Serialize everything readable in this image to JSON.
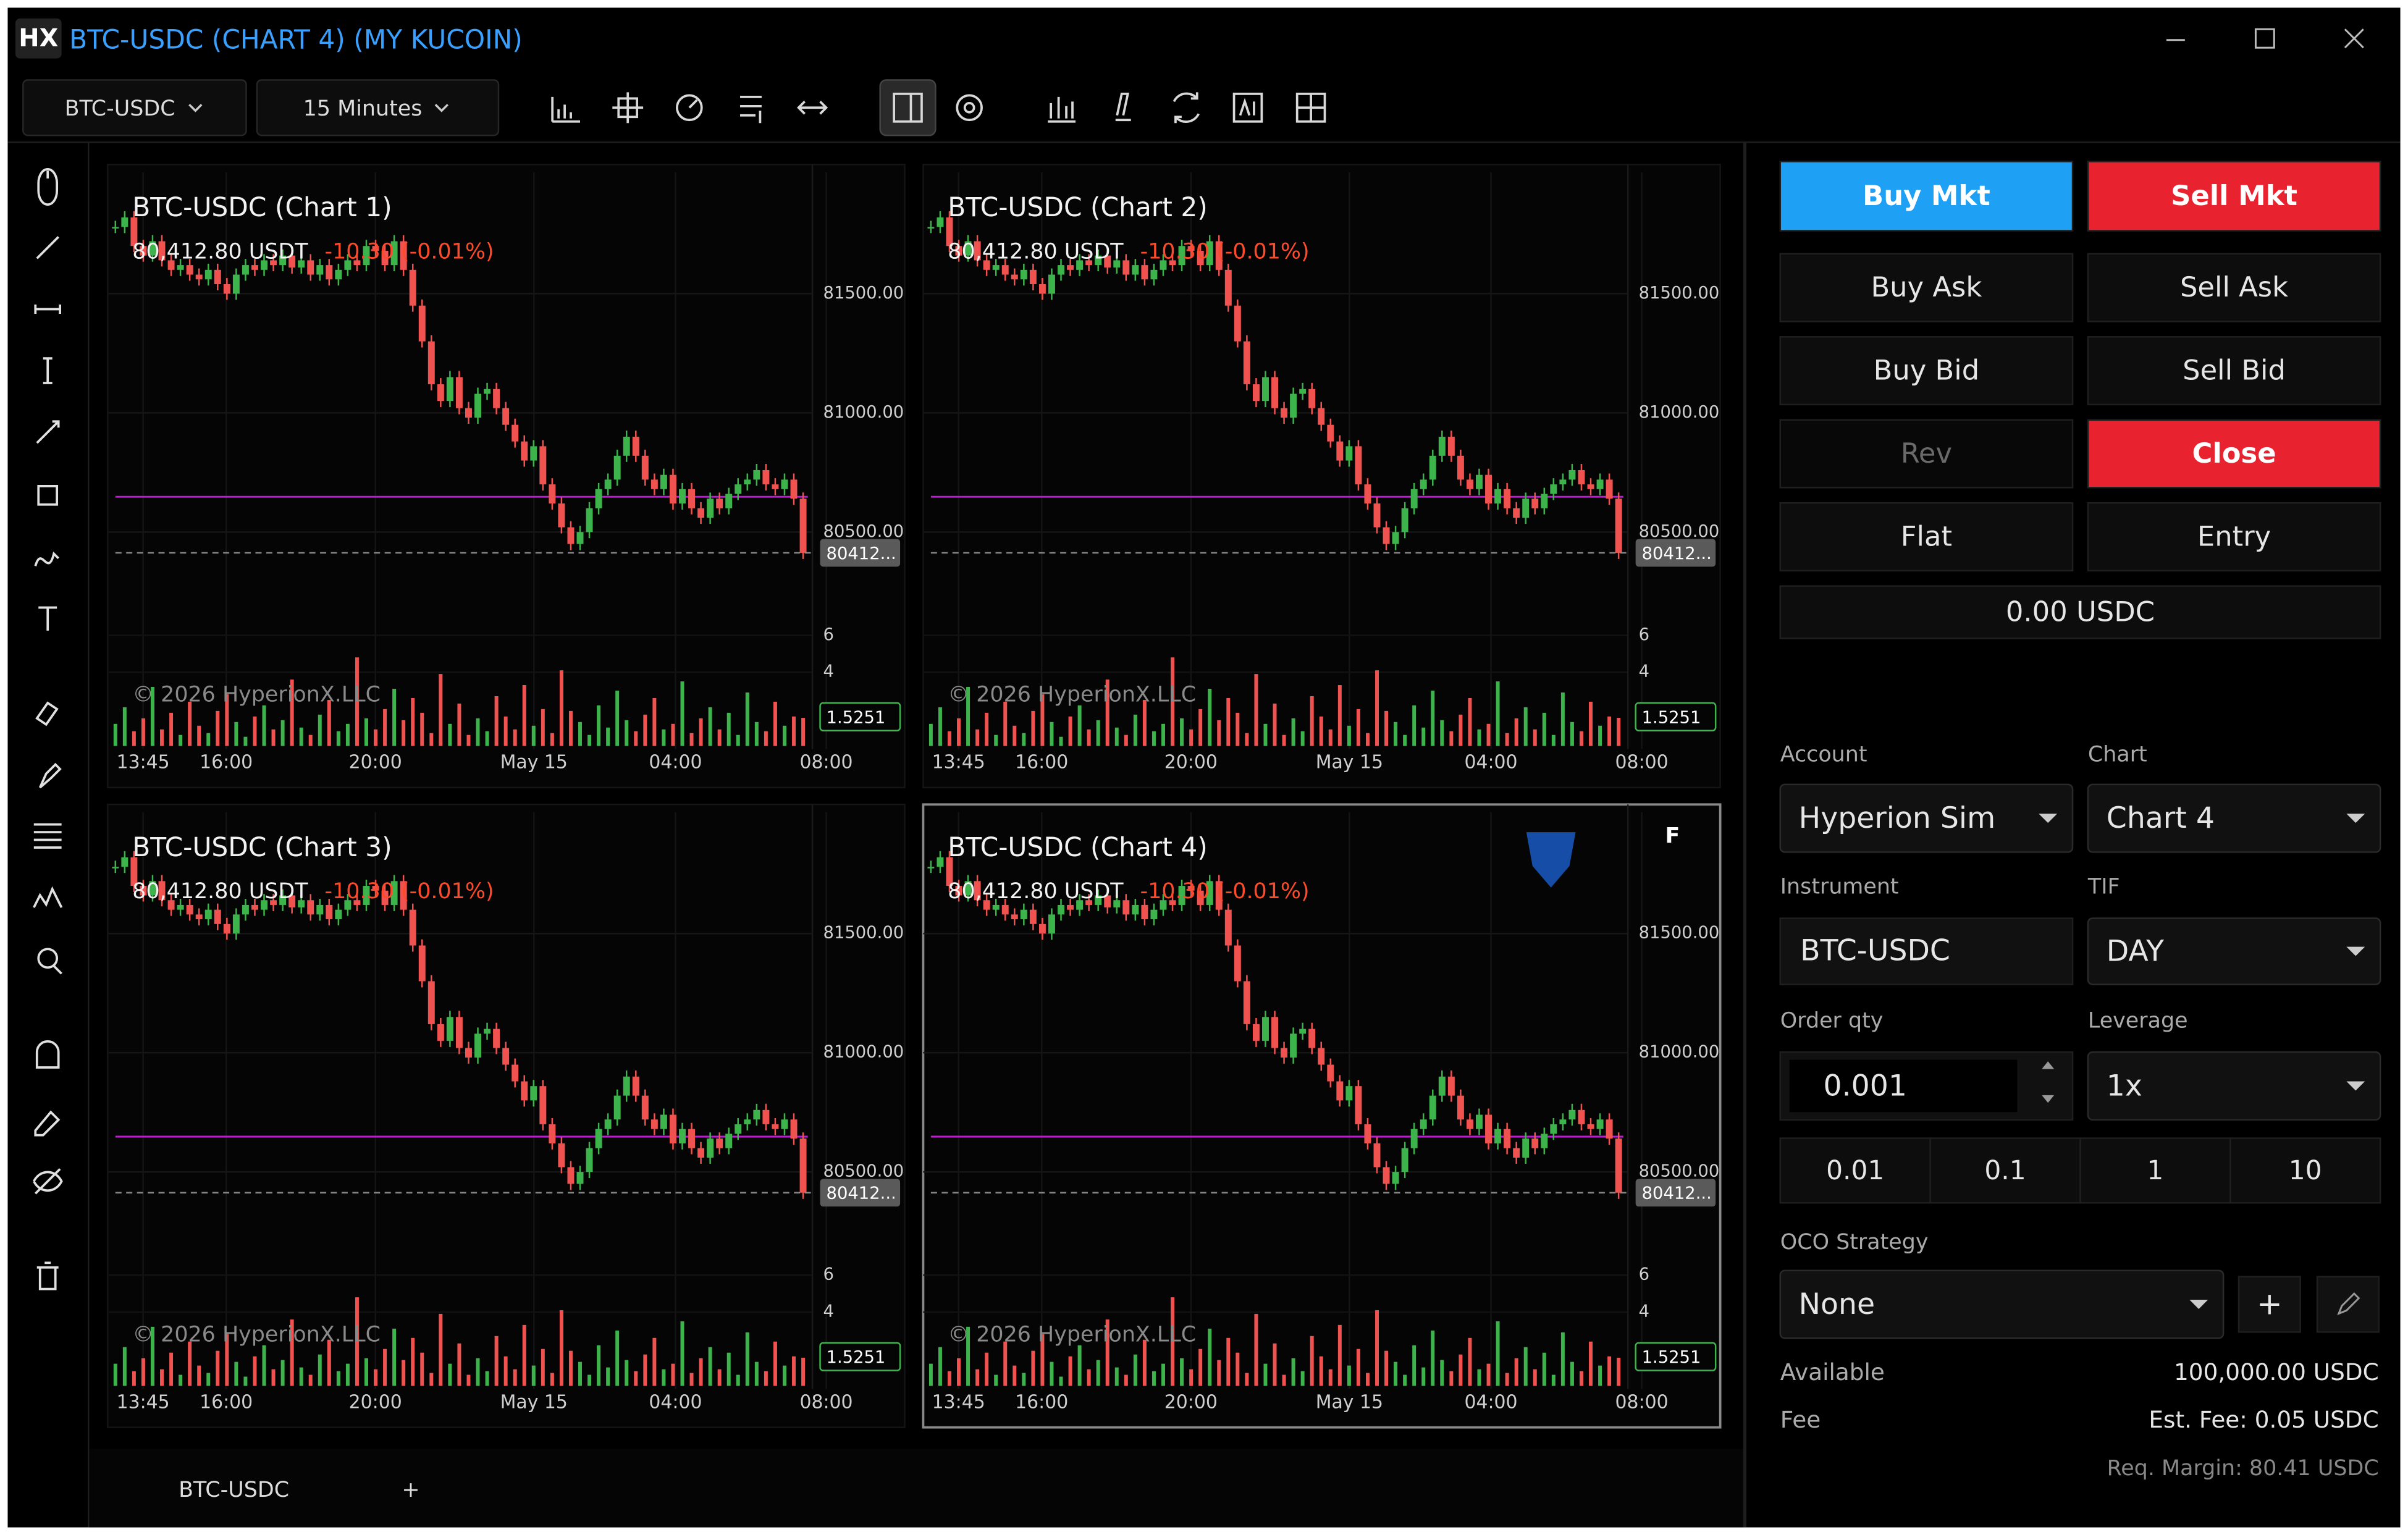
{
  "window": {
    "logo": "HX",
    "title": "BTC-USDC (CHART 4) (MY KUCOIN)"
  },
  "toolbar": {
    "symbol": "BTC-USDC",
    "interval": "15 Minutes"
  },
  "charts": [
    {
      "title": "BTC-USDC (Chart 1)"
    },
    {
      "title": "BTC-USDC (Chart 2)"
    },
    {
      "title": "BTC-USDC (Chart 3)"
    },
    {
      "title": "BTC-USDC (Chart 4)",
      "flag": "F"
    }
  ],
  "market": {
    "price": "80,412.80 USDT",
    "change": "-10.30 (-0.01%)",
    "watermark": "© 2026 HyperionX.LLC",
    "ylim": [
      80280,
      81990
    ],
    "yticks": [
      {
        "value": 81500,
        "label": "81500.00"
      },
      {
        "value": 81000,
        "label": "81000.00"
      },
      {
        "value": 80500,
        "label": "80500.00"
      }
    ],
    "last": {
      "value": 80412.8,
      "label": "80412..."
    },
    "ref_line": 80648,
    "vol_lim": [
      0,
      8
    ],
    "vol_ticks": [
      6,
      4
    ],
    "vol_label": "1.5251",
    "xticks": [
      "13:45",
      "16:00",
      "20:00",
      "May 15",
      "04:00",
      "08:00"
    ],
    "closes": [
      81780,
      81820,
      81700,
      81660,
      81720,
      81640,
      81600,
      81620,
      81580,
      81560,
      81600,
      81540,
      81500,
      81580,
      81620,
      81600,
      81640,
      81620,
      81660,
      81610,
      81640,
      81580,
      81620,
      81560,
      81600,
      81640,
      81620,
      81700,
      81680,
      81620,
      81720,
      81600,
      81450,
      81300,
      81120,
      81050,
      81150,
      81020,
      80980,
      81080,
      81100,
      81020,
      80950,
      80880,
      80800,
      80860,
      80700,
      80620,
      80520,
      80450,
      80500,
      80600,
      80680,
      80720,
      80820,
      80900,
      80820,
      80720,
      80680,
      80740,
      80620,
      80680,
      80600,
      80560,
      80640,
      80600,
      80660,
      80700,
      80720,
      80760,
      80700,
      80680,
      80720,
      80640,
      80412.8
    ],
    "volumes": [
      1.2,
      2.1,
      0.8,
      1.5,
      3.2,
      0.9,
      1.8,
      0.6,
      2.4,
      1.1,
      0.7,
      1.9,
      2.8,
      1.3,
      0.5,
      1.6,
      2.2,
      0.9,
      1.4,
      3.6,
      1.0,
      0.6,
      1.7,
      2.5,
      0.8,
      1.2,
      4.8,
      1.5,
      0.9,
      2.0,
      3.1,
      1.4,
      2.6,
      1.8,
      0.7,
      3.9,
      1.2,
      2.3,
      0.6,
      1.5,
      0.8,
      2.7,
      1.6,
      0.9,
      3.3,
      1.1,
      2.0,
      0.7,
      4.1,
      1.9,
      1.3,
      0.6,
      2.2,
      1.0,
      3.0,
      1.4,
      0.8,
      1.7,
      2.6,
      0.9,
      1.2,
      3.5,
      0.7,
      1.5,
      2.1,
      0.9,
      1.8,
      0.6,
      2.9,
      1.3,
      0.8,
      2.4,
      1.1,
      1.6,
      1.5251
    ]
  },
  "tabs": [
    "BTC-USDC",
    "+"
  ],
  "panel": {
    "buy_mkt": "Buy Mkt",
    "sell_mkt": "Sell Mkt",
    "buy_ask": "Buy Ask",
    "sell_ask": "Sell Ask",
    "buy_bid": "Buy Bid",
    "sell_bid": "Sell Bid",
    "rev": "Rev",
    "close": "Close",
    "flat": "Flat",
    "entry": "Entry",
    "balance": "0.00 USDC",
    "account_label": "Account",
    "account": "Hyperion Sim",
    "chart_label": "Chart",
    "chart": "Chart 4",
    "instrument_label": "Instrument",
    "instrument": "BTC-USDC",
    "tif_label": "TIF",
    "tif": "DAY",
    "qty_label": "Order qty",
    "qty": "0.001",
    "leverage_label": "Leverage",
    "leverage": "1x",
    "quick_qty": [
      0.01,
      0.1,
      1,
      10
    ],
    "oco_label": "OCO Strategy",
    "oco": "None",
    "add": "+",
    "available_label": "Available",
    "available": "100,000.00 USDC",
    "fee_label": "Fee",
    "fee": "Est. Fee: 0.05 USDC",
    "margin": "Req. Margin: 80.41 USDC"
  }
}
